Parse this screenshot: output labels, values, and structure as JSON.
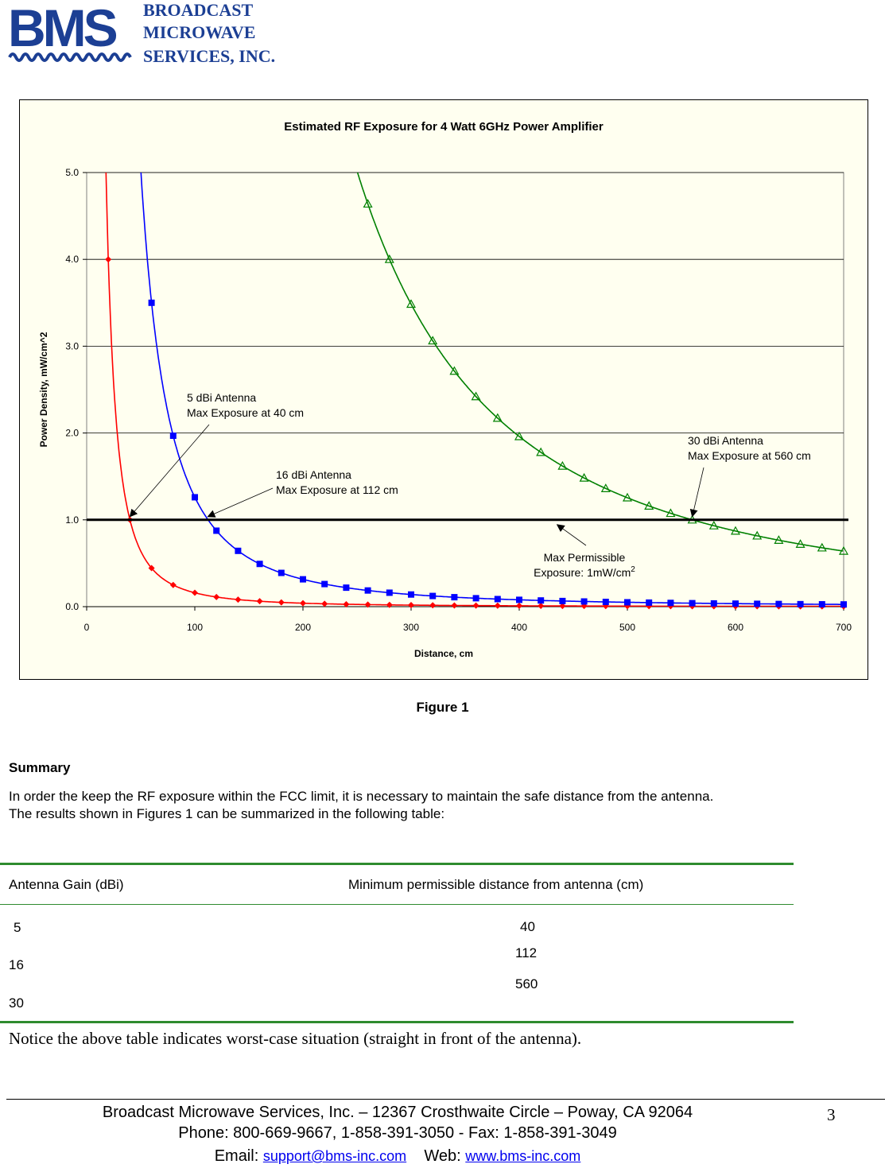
{
  "logo": {
    "mark": "BMS",
    "line1": "BROADCAST",
    "line2": "MICROWAVE",
    "line3": "SERVICES, INC."
  },
  "colors": {
    "chart_bg": "#fffff0",
    "series_5dbi": "#ff0000",
    "series_16dbi": "#0000ff",
    "series_30dbi": "#008000",
    "limit_line": "#000000",
    "table_rule": "#2e8b2e",
    "link": "#0000ee",
    "logo_blue": "#1c3f94"
  },
  "chart_data": {
    "type": "line",
    "title": "Estimated RF Exposure for 4 Watt 6GHz Power Amplifier",
    "xlabel": "Distance, cm",
    "ylabel": "Power Density, mW/cm^2",
    "xlim": [
      0,
      700
    ],
    "ylim": [
      0,
      5
    ],
    "x_ticks": [
      "0",
      "100",
      "200",
      "300",
      "400",
      "500",
      "600",
      "700"
    ],
    "y_ticks": [
      "0.0",
      "1.0",
      "2.0",
      "3.0",
      "4.0",
      "5.0"
    ],
    "grid": "horizontal",
    "limit_value": 1.0,
    "series": [
      {
        "name": "5 dBi Antenna",
        "k": 1600,
        "marker": "diamond",
        "x": [
          20,
          40,
          60,
          80,
          100,
          120,
          140,
          160,
          180,
          200,
          220,
          240,
          260,
          280,
          300,
          320,
          340,
          360,
          380,
          400,
          420,
          440,
          460,
          480,
          500,
          520,
          540,
          560,
          580,
          600,
          620,
          640,
          660,
          680,
          700
        ]
      },
      {
        "name": "16 dBi Antenna",
        "k": 12600,
        "marker": "square",
        "x": [
          60,
          80,
          100,
          120,
          140,
          160,
          180,
          200,
          220,
          240,
          260,
          280,
          300,
          320,
          340,
          360,
          380,
          400,
          420,
          440,
          460,
          480,
          500,
          520,
          540,
          560,
          580,
          600,
          620,
          640,
          660,
          680,
          700
        ]
      },
      {
        "name": "30 dBi Antenna",
        "k": 313600,
        "marker": "triangle",
        "x": [
          260,
          280,
          300,
          320,
          340,
          360,
          380,
          400,
          420,
          440,
          460,
          480,
          500,
          520,
          540,
          560,
          580,
          600,
          620,
          640,
          660,
          680,
          700
        ]
      }
    ],
    "annotations": [
      {
        "line1": "5 dBi Antenna",
        "line2": "Max Exposure at 40 cm",
        "target_x": 40
      },
      {
        "line1": "16 dBi Antenna",
        "line2": "Max Exposure at 112 cm",
        "target_x": 112
      },
      {
        "line1": "30 dBi Antenna",
        "line2": "Max Exposure at 560 cm",
        "target_x": 560
      },
      {
        "line1": "Max Permissible",
        "line2": "Exposure: 1mW/cm",
        "superscript": "2",
        "target_x": 435
      }
    ]
  },
  "figure_caption": "Figure 1",
  "summary": {
    "heading": "Summary",
    "line1": "In order the keep the RF exposure within the FCC limit, it is necessary to maintain the safe distance from the antenna.",
    "line2": "The results shown in Figures 1 can be summarized in the following table:"
  },
  "table": {
    "headers": [
      "Antenna Gain (dBi)",
      "Minimum permissible distance from antenna (cm)"
    ],
    "gain_values": [
      "5",
      "16",
      "30"
    ],
    "distance_values": [
      "40",
      "112",
      "560"
    ]
  },
  "notice": "Notice the above table indicates worst-case situation (straight in front of the antenna).",
  "footer": {
    "address": "Broadcast Microwave Services, Inc. – 12367 Crosthwaite Circle – Poway, CA 92064",
    "phone": "Phone: 800-669-9667, 1-858-391-3050 - Fax: 1-858-391-3049",
    "email_label": "Email:",
    "email": "support@bms-inc.com",
    "web_label": "Web:",
    "web": "www.bms-inc.com",
    "page_number": "3"
  }
}
